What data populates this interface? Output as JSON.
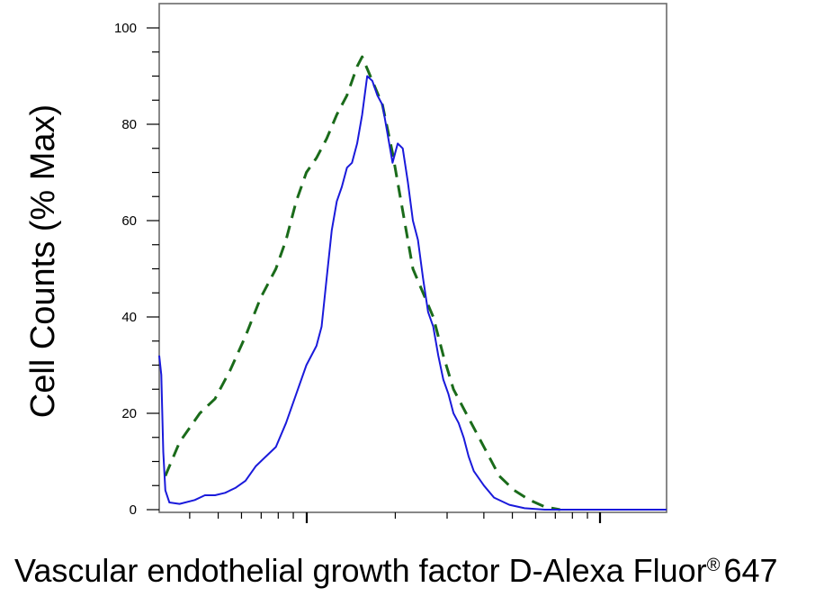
{
  "chart_data": {
    "type": "line",
    "xlabel": "Vascular endothelial growth factor D-Alexa Fluor",
    "xlabel_mark": "®",
    "xlabel_suffix": "647",
    "ylabel": "Cell Counts (% Max)",
    "ylim": [
      0,
      105
    ],
    "xscale": "log",
    "xlim": [
      0,
      1
    ],
    "ytick_labels": [
      "0",
      "20",
      "40",
      "60",
      "80",
      "100"
    ],
    "ytick_values": [
      0,
      20,
      40,
      60,
      80,
      100
    ],
    "grid": false,
    "series": [
      {
        "style": "dashed",
        "color": "#1a6b1a",
        "points": [
          [
            0.012,
            7
          ],
          [
            0.04,
            14
          ],
          [
            0.08,
            20
          ],
          [
            0.11,
            23
          ],
          [
            0.14,
            29
          ],
          [
            0.17,
            36
          ],
          [
            0.2,
            44
          ],
          [
            0.23,
            50
          ],
          [
            0.25,
            56
          ],
          [
            0.27,
            64
          ],
          [
            0.29,
            70
          ],
          [
            0.31,
            73
          ],
          [
            0.33,
            77
          ],
          [
            0.35,
            82
          ],
          [
            0.37,
            86
          ],
          [
            0.39,
            92
          ],
          [
            0.4,
            94
          ],
          [
            0.42,
            89
          ],
          [
            0.44,
            84
          ],
          [
            0.46,
            74
          ],
          [
            0.48,
            62
          ],
          [
            0.5,
            50
          ],
          [
            0.52,
            45
          ],
          [
            0.54,
            40
          ],
          [
            0.56,
            32
          ],
          [
            0.58,
            25
          ],
          [
            0.61,
            19
          ],
          [
            0.64,
            13
          ],
          [
            0.67,
            7
          ],
          [
            0.7,
            4
          ],
          [
            0.73,
            2
          ],
          [
            0.76,
            0.6
          ],
          [
            0.79,
            0
          ]
        ]
      },
      {
        "style": "solid",
        "color": "#1a1adb",
        "points": [
          [
            0.0,
            32
          ],
          [
            0.004,
            28
          ],
          [
            0.008,
            12
          ],
          [
            0.012,
            4
          ],
          [
            0.02,
            1.5
          ],
          [
            0.04,
            1.2
          ],
          [
            0.07,
            2
          ],
          [
            0.09,
            3
          ],
          [
            0.11,
            3
          ],
          [
            0.13,
            3.5
          ],
          [
            0.15,
            4.5
          ],
          [
            0.17,
            6
          ],
          [
            0.19,
            9
          ],
          [
            0.21,
            11
          ],
          [
            0.23,
            13
          ],
          [
            0.25,
            18
          ],
          [
            0.27,
            24
          ],
          [
            0.29,
            30
          ],
          [
            0.31,
            34
          ],
          [
            0.32,
            38
          ],
          [
            0.33,
            48
          ],
          [
            0.34,
            58
          ],
          [
            0.35,
            64
          ],
          [
            0.36,
            67
          ],
          [
            0.37,
            71
          ],
          [
            0.38,
            72
          ],
          [
            0.39,
            76
          ],
          [
            0.4,
            82
          ],
          [
            0.41,
            90
          ],
          [
            0.42,
            89
          ],
          [
            0.43,
            86
          ],
          [
            0.44,
            84
          ],
          [
            0.45,
            78
          ],
          [
            0.46,
            72
          ],
          [
            0.47,
            76
          ],
          [
            0.48,
            75
          ],
          [
            0.49,
            68
          ],
          [
            0.5,
            60
          ],
          [
            0.51,
            56
          ],
          [
            0.52,
            48
          ],
          [
            0.53,
            41
          ],
          [
            0.54,
            38
          ],
          [
            0.55,
            32
          ],
          [
            0.56,
            27
          ],
          [
            0.57,
            24
          ],
          [
            0.58,
            20
          ],
          [
            0.59,
            18
          ],
          [
            0.6,
            15
          ],
          [
            0.61,
            11
          ],
          [
            0.62,
            8
          ],
          [
            0.64,
            5
          ],
          [
            0.66,
            2.5
          ],
          [
            0.69,
            1
          ],
          [
            0.72,
            0.3
          ],
          [
            0.76,
            0
          ],
          [
            1.0,
            0
          ]
        ]
      }
    ]
  }
}
